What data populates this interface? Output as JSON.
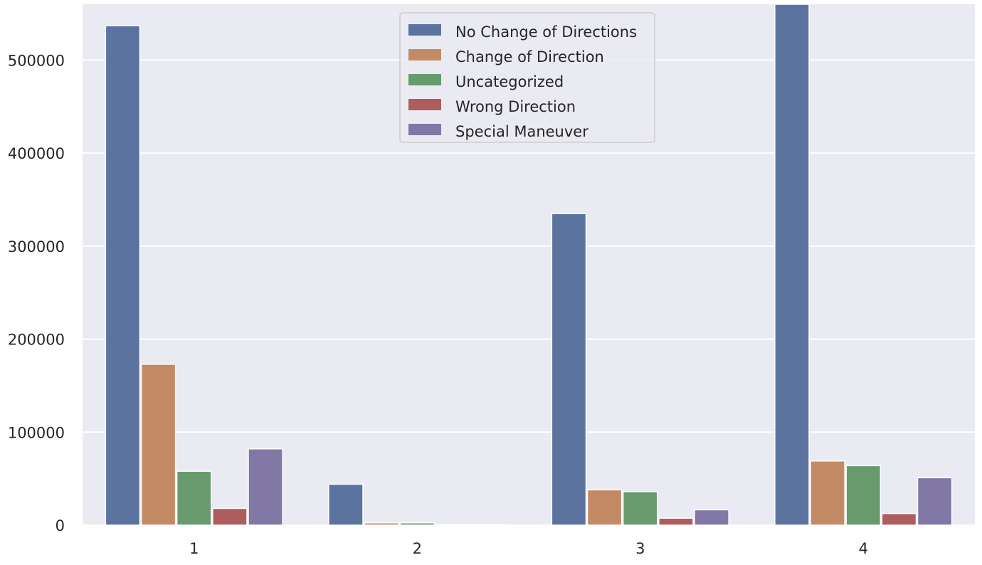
{
  "chart_data": {
    "type": "bar",
    "title": "",
    "xlabel": "",
    "ylabel": "",
    "categories": [
      "1",
      "2",
      "3",
      "4"
    ],
    "ylim": [
      0,
      560000
    ],
    "yticks": [
      0,
      100000,
      200000,
      300000,
      400000,
      500000
    ],
    "ytick_labels": [
      "0",
      "100000",
      "200000",
      "300000",
      "400000",
      "500000"
    ],
    "grid": true,
    "legend_position": "top-center",
    "series": [
      {
        "name": "No Change of Directions",
        "color": "#5c73a0",
        "values": [
          537000,
          44000,
          335000,
          560000
        ]
      },
      {
        "name": "Change of Direction",
        "color": "#c38b65",
        "values": [
          173000,
          2500,
          38000,
          69000
        ]
      },
      {
        "name": "Uncategorized",
        "color": "#689a6d",
        "values": [
          58000,
          2500,
          36000,
          64000
        ]
      },
      {
        "name": "Wrong Direction",
        "color": "#ae5d5f",
        "values": [
          18000,
          500,
          7500,
          12500
        ]
      },
      {
        "name": "Special Maneuver",
        "color": "#8178a6",
        "values": [
          82000,
          500,
          16500,
          51000
        ]
      }
    ],
    "colors": {
      "plot_background": "#eaeaf2",
      "grid": "#ffffff",
      "legend_background": "#eaeaf2",
      "legend_border": "#cccccc"
    }
  }
}
